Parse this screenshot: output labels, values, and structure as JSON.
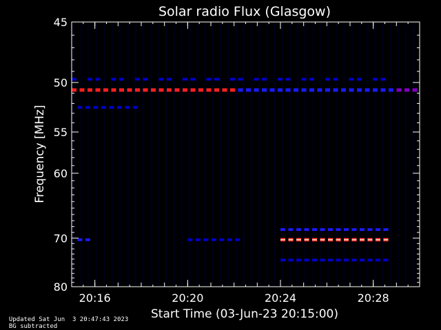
{
  "chart_data": {
    "type": "heatmap",
    "title": "Solar radio Flux (Glasgow)",
    "xlabel": "Start Time (03-Jun-23 20:15:00)",
    "ylabel": "Frequency [MHz]",
    "x_time_range": [
      "20:15:00",
      "20:30:00"
    ],
    "x_ticks": [
      "20:16",
      "20:20",
      "20:24",
      "20:28"
    ],
    "y_ticks": [
      45,
      50,
      55,
      60,
      70,
      80
    ],
    "y_scale": "reciprocal",
    "ylim": [
      80,
      45
    ],
    "colors": {
      "background": "#000000",
      "axes": "#ffffff",
      "weak": "#0000c8",
      "medium": "#1a1aff",
      "strong": "#ff2020",
      "mid": "#8000c0"
    },
    "emission_bands": [
      {
        "freq_mhz": 50.7,
        "time_start": "20:15:00",
        "time_end": "20:30:00",
        "level": "strong-red-segments",
        "note": "red 20:15-20:22, blue after, purple 20:29-20:30"
      },
      {
        "freq_mhz": 52.4,
        "time_start": "20:15:15",
        "time_end": "20:17:45",
        "level": "weak"
      },
      {
        "freq_mhz": 49.7,
        "time_start": "20:15:00",
        "time_end": "20:28:30",
        "level": "weak-sparse"
      },
      {
        "freq_mhz": 68.5,
        "time_start": "20:24:00",
        "time_end": "20:28:45",
        "level": "medium"
      },
      {
        "freq_mhz": 70.3,
        "time_start": "20:24:00",
        "time_end": "20:28:45",
        "level": "strong"
      },
      {
        "freq_mhz": 70.3,
        "time_start": "20:15:15",
        "time_end": "20:15:45",
        "level": "medium"
      },
      {
        "freq_mhz": 70.3,
        "time_start": "20:20:00",
        "time_end": "20:22:10",
        "level": "weak"
      },
      {
        "freq_mhz": 74.2,
        "time_start": "20:24:00",
        "time_end": "20:28:45",
        "level": "weak"
      }
    ]
  },
  "footer": {
    "updated": "Updated Sat Jun  3 20:47:43 2023",
    "note": "BG subtracted"
  }
}
